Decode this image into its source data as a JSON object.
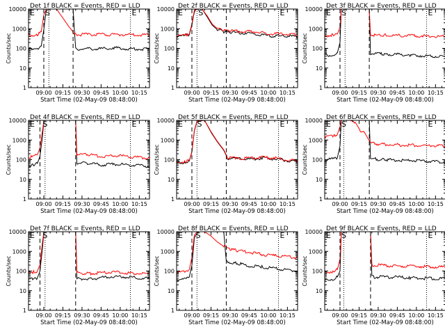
{
  "figure": {
    "y_tick_labels": [
      "1",
      "10",
      "100",
      "1000",
      "10000"
    ],
    "x_tick_labels": [
      "09:00",
      "09:15",
      "09:30",
      "09:45",
      "10:00",
      "10:15"
    ],
    "colors": {
      "events": "#000000",
      "lld": "#ff0000",
      "axes": "#000000"
    }
  },
  "chart_data": [
    {
      "type": "line",
      "title": "Det 1f BLACK = Events, RED = LLD",
      "xlabel": "Start Time (02-May-09 08:48:00)",
      "ylabel": "Counts/sec",
      "yscale": "log",
      "ylim": [
        1,
        10000
      ],
      "xlim": [
        "08:48",
        "10:23"
      ],
      "markers": [
        {
          "label": "E",
          "x": "08:48"
        },
        {
          "label": "S",
          "x": "09:00"
        },
        {
          "label": "E",
          "x": "10:08"
        }
      ],
      "vlines_dashed": [
        "09:00",
        "09:23"
      ],
      "vlines_dotted": [
        "09:04",
        "10:08"
      ],
      "series": [
        {
          "name": "Events",
          "x": [
            "08:48",
            "08:55",
            "08:58",
            "09:00",
            "09:02",
            "09:04",
            "09:10",
            "09:15",
            "09:20",
            "09:23",
            "09:25",
            "09:35",
            "09:45",
            "09:55",
            "10:05",
            "10:15",
            "10:23"
          ],
          "values": [
            95,
            100,
            130,
            900,
            10000,
            10000,
            10000,
            10000,
            10000,
            10000,
            95,
            95,
            95,
            105,
            95,
            92,
            90
          ]
        },
        {
          "name": "LLD",
          "x": [
            "08:48",
            "08:55",
            "08:58",
            "09:00",
            "09:02",
            "09:04",
            "09:10",
            "09:15",
            "09:20",
            "09:23",
            "09:25",
            "09:35",
            "09:45",
            "09:55",
            "10:05",
            "10:15",
            "10:23"
          ],
          "values": [
            480,
            490,
            700,
            5000,
            10000,
            10000,
            10000,
            3500,
            1200,
            700,
            510,
            500,
            500,
            500,
            500,
            490,
            480
          ]
        }
      ]
    },
    {
      "type": "line",
      "title": "Det 2f BLACK = Events, RED = LLD",
      "xlabel": "Start Time (02-May-09 08:48:00)",
      "ylabel": "Counts/sec",
      "yscale": "log",
      "ylim": [
        1,
        10000
      ],
      "xlim": [
        "08:48",
        "10:23"
      ],
      "markers": [
        {
          "label": "E",
          "x": "08:48"
        },
        {
          "label": "S",
          "x": "09:04"
        },
        {
          "label": "E",
          "x": "10:08"
        }
      ],
      "vlines_dashed": [
        "09:00",
        "09:27"
      ],
      "vlines_dotted": [
        "09:04",
        "10:08"
      ],
      "series": [
        {
          "name": "Events",
          "x": [
            "08:48",
            "08:55",
            "08:58",
            "09:00",
            "09:02",
            "09:04",
            "09:08",
            "09:12",
            "09:16",
            "09:20",
            "09:25",
            "09:30",
            "09:40",
            "09:50",
            "10:00",
            "10:10",
            "10:23"
          ],
          "values": [
            420,
            430,
            500,
            1500,
            8000,
            10000,
            10000,
            4000,
            1500,
            900,
            700,
            650,
            620,
            550,
            430,
            420,
            400
          ]
        },
        {
          "name": "LLD",
          "x": [
            "08:48",
            "08:55",
            "08:58",
            "09:00",
            "09:02",
            "09:04",
            "09:08",
            "09:12",
            "09:16",
            "09:20",
            "09:25",
            "09:30",
            "09:40",
            "09:50",
            "10:00",
            "10:10",
            "10:23"
          ],
          "values": [
            450,
            470,
            550,
            1800,
            9000,
            10000,
            10000,
            4500,
            1700,
            1000,
            800,
            760,
            740,
            700,
            560,
            540,
            520
          ]
        }
      ]
    },
    {
      "type": "line",
      "title": "Det 3f BLACK = Events, RED = LLD",
      "xlabel": "Start Time (02-May-09 08:48:00)",
      "ylabel": "Counts/sec",
      "yscale": "log",
      "ylim": [
        1,
        10000
      ],
      "xlim": [
        "08:48",
        "10:23"
      ],
      "markers": [
        {
          "label": "E",
          "x": "08:48"
        },
        {
          "label": "S",
          "x": "09:00"
        },
        {
          "label": "E",
          "x": "10:08"
        }
      ],
      "vlines_dashed": [
        "09:00",
        "09:23"
      ],
      "vlines_dotted": [
        "09:04",
        "10:08"
      ],
      "series": [
        {
          "name": "Events",
          "x": [
            "08:48",
            "08:55",
            "08:58",
            "09:00",
            "09:01",
            "09:23",
            "09:24",
            "09:35",
            "09:45",
            "09:55",
            "10:05",
            "10:15",
            "10:23"
          ],
          "values": [
            45,
            45,
            60,
            200,
            10000,
            10000,
            55,
            50,
            48,
            45,
            42,
            40,
            38
          ]
        },
        {
          "name": "LLD",
          "x": [
            "08:48",
            "08:55",
            "08:58",
            "09:00",
            "09:01",
            "09:23",
            "09:24",
            "09:35",
            "09:45",
            "09:55",
            "10:05",
            "10:15",
            "10:23"
          ],
          "values": [
            450,
            470,
            550,
            1200,
            10000,
            10000,
            470,
            460,
            450,
            440,
            420,
            410,
            400
          ]
        }
      ]
    },
    {
      "type": "line",
      "title": "Det 4f BLACK = Events, RED = LLD",
      "xlabel": "Start Time (02-May-09 08:48:00)",
      "ylabel": "Counts/sec",
      "yscale": "log",
      "ylim": [
        1,
        10000
      ],
      "xlim": [
        "08:48",
        "10:23"
      ],
      "markers": [
        {
          "label": "E",
          "x": "08:48"
        },
        {
          "label": "S",
          "x": "08:58"
        },
        {
          "label": "E",
          "x": "10:08"
        }
      ],
      "vlines_dashed": [
        "08:57",
        "09:25"
      ],
      "vlines_dotted": [
        "09:01",
        "10:08"
      ],
      "series": [
        {
          "name": "Events",
          "x": [
            "08:48",
            "08:52",
            "08:55",
            "08:57",
            "08:59",
            "09:00",
            "09:25",
            "09:26",
            "09:35",
            "09:45",
            "09:55",
            "10:05",
            "10:15",
            "10:23"
          ],
          "values": [
            50,
            55,
            65,
            150,
            1500,
            10000,
            10000,
            70,
            65,
            55,
            60,
            55,
            50,
            45
          ]
        },
        {
          "name": "LLD",
          "x": [
            "08:48",
            "08:52",
            "08:55",
            "08:57",
            "08:59",
            "09:00",
            "09:25",
            "09:26",
            "09:35",
            "09:45",
            "09:55",
            "10:05",
            "10:15",
            "10:23"
          ],
          "values": [
            130,
            140,
            180,
            400,
            3000,
            10000,
            10000,
            190,
            180,
            140,
            160,
            150,
            130,
            120
          ]
        }
      ]
    },
    {
      "type": "line",
      "title": "Det 5f BLACK = Events, RED = LLD",
      "xlabel": "Start Time (02-May-09 08:48:00)",
      "ylabel": "Counts/sec",
      "yscale": "log",
      "ylim": [
        1,
        10000
      ],
      "xlim": [
        "08:48",
        "10:23"
      ],
      "markers": [
        {
          "label": "E",
          "x": "08:48"
        },
        {
          "label": "S",
          "x": "09:03"
        },
        {
          "label": "E",
          "x": "10:08"
        }
      ],
      "vlines_dashed": [
        "09:00",
        "09:27"
      ],
      "vlines_dotted": [
        "09:04",
        "10:08"
      ],
      "series": [
        {
          "name": "Events",
          "x": [
            "08:48",
            "08:55",
            "08:58",
            "09:00",
            "09:02",
            "09:04",
            "09:10",
            "09:15",
            "09:20",
            "09:25",
            "09:28",
            "09:35",
            "09:45",
            "09:55",
            "10:05",
            "10:15",
            "10:23"
          ],
          "values": [
            70,
            75,
            85,
            250,
            3000,
            9000,
            10000,
            2500,
            800,
            300,
            120,
            110,
            105,
            120,
            110,
            90,
            80
          ]
        },
        {
          "name": "LLD",
          "x": [
            "08:48",
            "08:55",
            "08:58",
            "09:00",
            "09:02",
            "09:04",
            "09:10",
            "09:15",
            "09:20",
            "09:25",
            "09:28",
            "09:35",
            "09:45",
            "09:55",
            "10:05",
            "10:15",
            "10:23"
          ],
          "values": [
            75,
            80,
            90,
            270,
            3200,
            9500,
            10000,
            2700,
            850,
            320,
            130,
            120,
            115,
            130,
            120,
            95,
            85
          ]
        }
      ]
    },
    {
      "type": "line",
      "title": "Det 6f BLACK = Events, RED = LLD",
      "xlabel": "Start Time (02-May-09 08:48:00)",
      "ylabel": "Counts/sec",
      "yscale": "log",
      "ylim": [
        1,
        10000
      ],
      "xlim": [
        "08:48",
        "10:23"
      ],
      "markers": [
        {
          "label": "E",
          "x": "08:48"
        },
        {
          "label": "S",
          "x": "09:00"
        },
        {
          "label": "E",
          "x": "10:08"
        }
      ],
      "vlines_dashed": [
        "09:00",
        "09:23"
      ],
      "vlines_dotted": [
        "09:03",
        "10:08"
      ],
      "series": [
        {
          "name": "Events",
          "x": [
            "08:48",
            "08:55",
            "08:58",
            "09:00",
            "09:01",
            "09:23",
            "09:24",
            "09:35",
            "09:45",
            "09:55",
            "10:05",
            "10:15",
            "10:23"
          ],
          "values": [
            100,
            110,
            130,
            500,
            10000,
            10000,
            110,
            100,
            95,
            90,
            85,
            80,
            75
          ]
        },
        {
          "name": "LLD",
          "x": [
            "08:48",
            "08:55",
            "08:58",
            "09:00",
            "09:01",
            "09:08",
            "09:12",
            "09:16",
            "09:20",
            "09:24",
            "09:30",
            "09:40",
            "09:50",
            "10:00",
            "10:10",
            "10:23"
          ],
          "values": [
            1500,
            1600,
            2000,
            5000,
            10000,
            10000,
            8000,
            3000,
            2000,
            700,
            620,
            580,
            560,
            540,
            520,
            500
          ]
        }
      ]
    },
    {
      "type": "line",
      "title": "Det 7f BLACK = Events, RED = LLD",
      "xlabel": "Start Time (02-May-09 08:48:00)",
      "ylabel": "Counts/sec",
      "yscale": "log",
      "ylim": [
        1,
        10000
      ],
      "xlim": [
        "08:48",
        "10:23"
      ],
      "markers": [
        {
          "label": "E",
          "x": "08:48"
        },
        {
          "label": "S",
          "x": "08:58"
        },
        {
          "label": "E",
          "x": "10:08"
        }
      ],
      "vlines_dashed": [
        "08:57",
        "09:25"
      ],
      "vlines_dotted": [
        "09:01",
        "10:08"
      ],
      "series": [
        {
          "name": "Events",
          "x": [
            "08:48",
            "08:52",
            "08:55",
            "08:57",
            "08:59",
            "09:00",
            "09:25",
            "09:26",
            "09:35",
            "09:45",
            "09:55",
            "10:05",
            "10:15",
            "10:23"
          ],
          "values": [
            35,
            40,
            45,
            100,
            1500,
            10000,
            10000,
            40,
            40,
            45,
            55,
            50,
            45,
            42
          ]
        },
        {
          "name": "LLD",
          "x": [
            "08:48",
            "08:52",
            "08:55",
            "08:57",
            "08:59",
            "09:00",
            "09:25",
            "09:26",
            "09:35",
            "09:45",
            "09:55",
            "10:05",
            "10:15",
            "10:23"
          ],
          "values": [
            85,
            90,
            100,
            220,
            3000,
            10000,
            10000,
            80,
            75,
            80,
            90,
            80,
            75,
            70
          ]
        }
      ]
    },
    {
      "type": "line",
      "title": "Det 8f BLACK = Events, RED = LLD",
      "xlabel": "Start Time (02-May-09 08:48:00)",
      "ylabel": "Counts/sec",
      "yscale": "log",
      "ylim": [
        1,
        10000
      ],
      "xlim": [
        "08:48",
        "10:23"
      ],
      "markers": [
        {
          "label": "E",
          "x": "08:48"
        },
        {
          "label": "S",
          "x": "09:02"
        },
        {
          "label": "E",
          "x": "10:08"
        }
      ],
      "vlines_dashed": [
        "09:00",
        "09:27"
      ],
      "vlines_dotted": [
        "09:04",
        "10:08"
      ],
      "series": [
        {
          "name": "Events",
          "x": [
            "08:48",
            "08:55",
            "08:58",
            "09:00",
            "09:02",
            "09:05",
            "09:25",
            "09:27",
            "09:35",
            "09:45",
            "09:55",
            "10:05",
            "10:15",
            "10:23"
          ],
          "values": [
            35,
            38,
            50,
            200,
            5000,
            10000,
            10000,
            300,
            250,
            180,
            160,
            140,
            110,
            100
          ]
        },
        {
          "name": "LLD",
          "x": [
            "08:48",
            "08:55",
            "08:58",
            "09:00",
            "09:02",
            "09:05",
            "09:10",
            "09:15",
            "09:20",
            "09:25",
            "09:30",
            "09:35",
            "09:45",
            "09:55",
            "10:05",
            "10:15",
            "10:23"
          ],
          "values": [
            85,
            90,
            120,
            500,
            8000,
            10000,
            10000,
            6000,
            3000,
            1800,
            1300,
            1100,
            900,
            700,
            600,
            520,
            480
          ]
        }
      ]
    },
    {
      "type": "line",
      "title": "Det 9f BLACK = Events, RED = LLD",
      "xlabel": "Start Time (02-May-09 08:48:00)",
      "ylabel": "Counts/sec",
      "yscale": "log",
      "ylim": [
        1,
        10000
      ],
      "xlim": [
        "08:48",
        "10:23"
      ],
      "markers": [
        {
          "label": "E",
          "x": "08:48"
        },
        {
          "label": "S",
          "x": "09:00"
        },
        {
          "label": "E",
          "x": "10:08"
        }
      ],
      "vlines_dashed": [
        "09:00",
        "09:24"
      ],
      "vlines_dotted": [
        "09:03",
        "10:08"
      ],
      "series": [
        {
          "name": "Events",
          "x": [
            "08:48",
            "08:55",
            "08:58",
            "09:00",
            "09:01",
            "09:24",
            "09:25",
            "09:35",
            "09:45",
            "09:55",
            "10:05",
            "10:15",
            "10:23"
          ],
          "values": [
            35,
            40,
            50,
            100,
            10000,
            10000,
            50,
            50,
            48,
            45,
            43,
            42,
            40
          ]
        },
        {
          "name": "LLD",
          "x": [
            "08:48",
            "08:55",
            "08:58",
            "09:00",
            "09:01",
            "09:24",
            "09:25",
            "09:35",
            "09:45",
            "09:55",
            "10:05",
            "10:15",
            "10:23"
          ],
          "values": [
            85,
            95,
            120,
            400,
            10000,
            10000,
            200,
            190,
            180,
            175,
            170,
            165,
            160
          ]
        }
      ]
    }
  ]
}
